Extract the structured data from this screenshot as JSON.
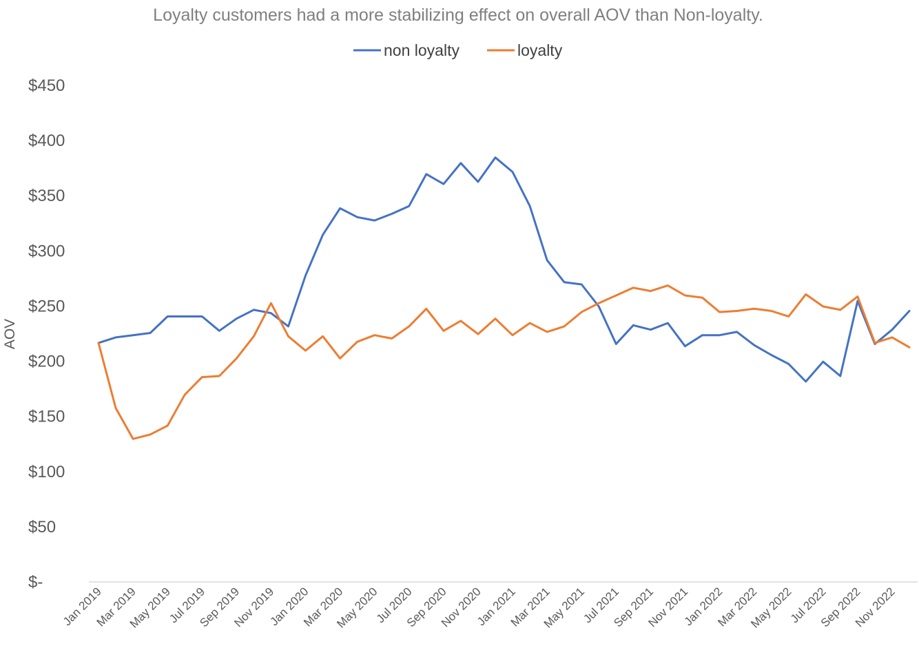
{
  "chart_data": {
    "type": "line",
    "title": "Loyalty customers had a more stabilizing effect on overall AOV than Non-loyalty.",
    "ylabel": "AOV",
    "xlabel": "",
    "ylim": [
      0,
      450
    ],
    "yticks": [
      0,
      50,
      100,
      150,
      200,
      250,
      300,
      350,
      400,
      450
    ],
    "ytick_labels": [
      "$-",
      "$50",
      "$100",
      "$150",
      "$200",
      "$250",
      "$300",
      "$350",
      "$400",
      "$450"
    ],
    "grid": false,
    "legend_position": "top",
    "categories": [
      "Jan 2019",
      "Feb 2019",
      "Mar 2019",
      "Apr 2019",
      "May 2019",
      "Jun 2019",
      "Jul 2019",
      "Aug 2019",
      "Sep 2019",
      "Oct 2019",
      "Nov 2019",
      "Dec 2019",
      "Jan 2020",
      "Feb 2020",
      "Mar 2020",
      "Apr 2020",
      "May 2020",
      "Jun 2020",
      "Jul 2020",
      "Aug 2020",
      "Sep 2020",
      "Oct 2020",
      "Nov 2020",
      "Dec 2020",
      "Jan 2021",
      "Feb 2021",
      "Mar 2021",
      "Apr 2021",
      "May 2021",
      "Jun 2021",
      "Jul 2021",
      "Aug 2021",
      "Sep 2021",
      "Oct 2021",
      "Nov 2021",
      "Dec 2021",
      "Jan 2022",
      "Feb 2022",
      "Mar 2022",
      "Apr 2022",
      "May 2022",
      "Jun 2022",
      "Jul 2022",
      "Aug 2022",
      "Sep 2022",
      "Oct 2022",
      "Nov 2022",
      "Dec 2022"
    ],
    "tick_labels": [
      "Jan 2019",
      "Mar 2019",
      "May 2019",
      "Jul 2019",
      "Sep 2019",
      "Nov 2019",
      "Jan 2020",
      "Mar 2020",
      "May 2020",
      "Jul 2020",
      "Sep 2020",
      "Nov 2020",
      "Jan 2021",
      "Mar 2021",
      "May 2021",
      "Jul 2021",
      "Sep 2021",
      "Nov 2021",
      "Jan 2022",
      "Mar 2022",
      "May 2022",
      "Jul 2022",
      "Sep 2022",
      "Nov 2022"
    ],
    "series": [
      {
        "name": "non loyalty",
        "color": "#4472c4",
        "values": [
          216,
          221,
          223,
          225,
          240,
          240,
          240,
          227,
          238,
          246,
          243,
          231,
          277,
          314,
          338,
          330,
          327,
          333,
          340,
          369,
          360,
          379,
          362,
          384,
          371,
          340,
          291,
          271,
          269,
          249,
          215,
          232,
          228,
          234,
          213,
          223,
          223,
          226,
          214,
          205,
          197,
          181,
          199,
          186,
          254,
          215,
          228,
          245
        ]
      },
      {
        "name": "loyalty",
        "color": "#ed7d31",
        "values": [
          216,
          157,
          129,
          133,
          141,
          169,
          185,
          186,
          202,
          222,
          252,
          222,
          209,
          222,
          202,
          217,
          223,
          220,
          231,
          247,
          227,
          236,
          224,
          238,
          223,
          234,
          226,
          231,
          244,
          252,
          259,
          266,
          263,
          268,
          259,
          257,
          244,
          245,
          247,
          245,
          240,
          260,
          249,
          246,
          258,
          216,
          221,
          212
        ]
      }
    ]
  }
}
